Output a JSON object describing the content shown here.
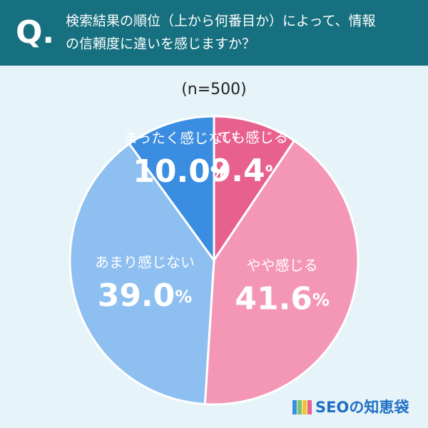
{
  "header": {
    "badge": "Q.",
    "question": [
      "検索結果の順位（上から何番目か）によって、情報",
      "の信頼度に違いを感じますか？"
    ]
  },
  "chart_data": {
    "type": "pie",
    "subtitle": "(n=500)",
    "categories": [
      "とても感じる",
      "やや感じる",
      "あまり感じない",
      "まったく感じない"
    ],
    "values": [
      9.4,
      41.6,
      39.0,
      10.0
    ],
    "value_labels": [
      "9.4%",
      "41.6%",
      "39.0%",
      "10.0%"
    ],
    "colors": [
      "#e8608e",
      "#f497b6",
      "#8dbff0",
      "#3a8de0"
    ]
  },
  "footer": {
    "logo": "SEOの知恵袋"
  }
}
